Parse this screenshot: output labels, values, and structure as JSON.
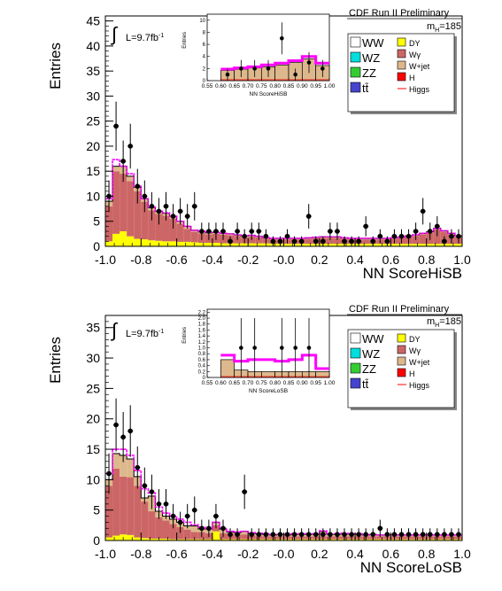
{
  "chart_data": [
    {
      "type": "histogram",
      "title": "CDF Run II Preliminary",
      "mass_label": "m",
      "mass_sub": "H",
      "mass_value": "=185",
      "lumi_prefix": "L=9.7fb",
      "lumi_sup": "-1",
      "xlabel": "NN ScoreHiSB",
      "ylabel": "Entries",
      "xlim": [
        -1.0,
        1.0
      ],
      "ylim": [
        0,
        46
      ],
      "x_ticks": [
        "-1.0",
        "-0.8",
        "-0.6",
        "-0.4",
        "-0.2",
        "-0.0",
        "0.2",
        "0.4",
        "0.6",
        "0.8",
        "1.0"
      ],
      "y_ticks": [
        0,
        5,
        10,
        15,
        20,
        25,
        30,
        35,
        40,
        45
      ],
      "bins": [
        -1.0,
        -0.96,
        -0.92,
        -0.88,
        -0.84,
        -0.8,
        -0.76,
        -0.72,
        -0.68,
        -0.64,
        -0.6,
        -0.56,
        -0.52,
        -0.48,
        -0.44,
        -0.4,
        -0.36,
        -0.32,
        -0.28,
        -0.24,
        -0.2,
        -0.16,
        -0.12,
        -0.08,
        -0.04,
        0.0,
        0.04,
        0.08,
        0.12,
        0.16,
        0.2,
        0.24,
        0.28,
        0.32,
        0.36,
        0.4,
        0.44,
        0.48,
        0.52,
        0.56,
        0.6,
        0.64,
        0.68,
        0.72,
        0.76,
        0.8,
        0.84,
        0.88,
        0.92,
        0.96,
        1.0
      ],
      "stack": [
        {
          "name": "DY",
          "color": "#ffff00",
          "values": [
            1.0,
            2.5,
            3.0,
            2.0,
            1.5,
            1.4,
            1.2,
            1.1,
            1.0,
            1.0,
            0.9,
            0.9,
            0.8,
            0.7,
            0.7,
            0.7,
            0.6,
            0.6,
            0.6,
            0.6,
            0.6,
            0.6,
            0.6,
            0.5,
            0.5,
            0.5,
            0.5,
            0.5,
            0.5,
            0.5,
            0.5,
            0.5,
            0.5,
            0.5,
            0.5,
            0.5,
            0.5,
            0.5,
            0.5,
            0.5,
            0.5,
            0.5,
            0.5,
            0.5,
            0.5,
            0.5,
            0.5,
            0.5,
            0.5,
            0.5
          ]
        },
        {
          "name": "Wγ",
          "color": "#cc6666",
          "values": [
            7.0,
            12.5,
            11.5,
            11.0,
            9.5,
            7.5,
            6.0,
            5.4,
            5.1,
            4.5,
            3.6,
            2.6,
            2.1,
            1.9,
            1.7,
            1.8,
            1.7,
            1.6,
            1.5,
            1.2,
            1.4,
            1.2,
            0.9,
            0.9,
            0.9,
            0.9,
            0.9,
            0.9,
            1.0,
            1.1,
            1.2,
            1.2,
            1.2,
            1.0,
            0.9,
            0.9,
            0.9,
            0.9,
            0.9,
            0.9,
            1.0,
            1.1,
            1.4,
            1.6,
            1.9,
            2.2,
            2.9,
            2.4,
            1.9,
            1.4
          ]
        },
        {
          "name": "W+jet",
          "color": "#ddb88c",
          "values": [
            1.0,
            1.0,
            1.5,
            1.0,
            0.8,
            0.6,
            0.5,
            0.5,
            0.5,
            0.5,
            0.5,
            0.5,
            0.3,
            0.3,
            0.3,
            0.3,
            0.3,
            0.3,
            0.2,
            0.3,
            0.2,
            0.2,
            0.2,
            0.2,
            0.2,
            0.2,
            0.2,
            0.2,
            0.2,
            0.2,
            0.2,
            0.2,
            0.2,
            0.2,
            0.2,
            0.2,
            0.2,
            0.2,
            0.2,
            0.2,
            0.2,
            0.2,
            0.2,
            0.2,
            0.2,
            0.2,
            0.2,
            0.2,
            0.2,
            0.2
          ]
        }
      ],
      "signal_total": [
        9.5,
        17.3,
        16.0,
        14.5,
        12.0,
        9.5,
        7.8,
        7.0,
        6.7,
        6.0,
        5.0,
        4.0,
        3.2,
        3.0,
        2.8,
        2.8,
        2.6,
        2.5,
        2.3,
        2.1,
        2.2,
        2.0,
        1.7,
        1.6,
        1.6,
        1.6,
        1.6,
        1.6,
        1.7,
        1.8,
        1.9,
        1.9,
        1.9,
        1.7,
        1.6,
        1.6,
        1.6,
        1.6,
        1.6,
        1.6,
        1.7,
        1.8,
        2.1,
        2.3,
        2.6,
        2.9,
        3.6,
        3.1,
        2.6,
        2.1
      ],
      "data_points": {
        "x": [
          -0.98,
          -0.94,
          -0.9,
          -0.86,
          -0.82,
          -0.78,
          -0.74,
          -0.7,
          -0.66,
          -0.62,
          -0.58,
          -0.54,
          -0.5,
          -0.46,
          -0.42,
          -0.38,
          -0.34,
          -0.3,
          -0.26,
          -0.22,
          -0.18,
          -0.14,
          -0.1,
          -0.06,
          -0.02,
          0.02,
          0.06,
          0.1,
          0.14,
          0.18,
          0.22,
          0.26,
          0.3,
          0.34,
          0.38,
          0.42,
          0.46,
          0.5,
          0.54,
          0.58,
          0.62,
          0.66,
          0.7,
          0.74,
          0.78,
          0.82,
          0.86,
          0.9,
          0.94,
          0.98
        ],
        "y": [
          10,
          24,
          17,
          20,
          12,
          10,
          8,
          7,
          8,
          6,
          7,
          6,
          8,
          3,
          3,
          3,
          3,
          1,
          3,
          2,
          3,
          3,
          2,
          1,
          1,
          2,
          1,
          1,
          6,
          1,
          1,
          3,
          3,
          1,
          1,
          1,
          4,
          1,
          2,
          1,
          2,
          2,
          2,
          3,
          7,
          3,
          4,
          1,
          2,
          2
        ]
      },
      "legend": [
        {
          "label": "WW",
          "color": "#ffffff"
        },
        {
          "label": "WZ",
          "color": "#00dddd"
        },
        {
          "label": "ZZ",
          "color": "#33cc33"
        },
        {
          "label": "tt̄",
          "color": "#4444cc"
        },
        {
          "label": "DY",
          "color": "#ffff00"
        },
        {
          "label": "Wγ",
          "color": "#cc6666"
        },
        {
          "label": "W+jet",
          "color": "#ddb88c"
        },
        {
          "label": "H",
          "color": "#ff0000"
        },
        {
          "label": "Higgs",
          "color": "#ff0000",
          "line": true
        }
      ],
      "inset": {
        "xlabel": "NN ScoreHiSB",
        "ylabel": "Entries",
        "xlim": [
          0.55,
          1.0
        ],
        "ylim": [
          0,
          11
        ],
        "x_ticks": [
          "0.55",
          "0.60",
          "0.65",
          "0.70",
          "0.75",
          "0.80",
          "0.85",
          "0.90",
          "0.95",
          "1.00"
        ],
        "y_ticks": [
          0,
          2,
          4,
          6,
          8,
          10
        ],
        "bins": [
          0.6,
          0.65,
          0.7,
          0.75,
          0.8,
          0.85,
          0.9,
          0.95,
          1.0
        ],
        "bkg": [
          1.7,
          1.9,
          2.1,
          2.3,
          2.6,
          3.0,
          3.6,
          2.5
        ],
        "sig": [
          1.9,
          2.1,
          2.3,
          2.6,
          2.9,
          3.3,
          4.0,
          2.9
        ],
        "data_x": [
          0.625,
          0.675,
          0.725,
          0.775,
          0.825,
          0.875,
          0.925,
          0.975
        ],
        "data_y": [
          1,
          2,
          2,
          2,
          7,
          1,
          3,
          2
        ]
      }
    },
    {
      "type": "histogram",
      "title": "CDF Run II Preliminary",
      "mass_label": "m",
      "mass_sub": "H",
      "mass_value": "=185",
      "lumi_prefix": "L=9.7fb",
      "lumi_sup": "-1",
      "xlabel": "NN ScoreLoSB",
      "ylabel": "Entries",
      "xlim": [
        -1.0,
        1.0
      ],
      "ylim": [
        0,
        37
      ],
      "x_ticks": [
        "-1.0",
        "-0.8",
        "-0.6",
        "-0.4",
        "-0.2",
        "-0.0",
        "0.2",
        "0.4",
        "0.6",
        "0.8",
        "1.0"
      ],
      "y_ticks": [
        0,
        5,
        10,
        15,
        20,
        25,
        30,
        35
      ],
      "bins": [
        -1.0,
        -0.96,
        -0.92,
        -0.88,
        -0.84,
        -0.8,
        -0.76,
        -0.72,
        -0.68,
        -0.64,
        -0.6,
        -0.56,
        -0.52,
        -0.48,
        -0.44,
        -0.4,
        -0.36,
        -0.32,
        -0.28,
        -0.24,
        -0.2,
        -0.16,
        -0.12,
        -0.08,
        -0.04,
        0.0,
        0.04,
        0.08,
        0.12,
        0.16,
        0.2,
        0.24,
        0.28,
        0.32,
        0.36,
        0.4,
        0.44,
        0.48,
        0.52,
        0.56,
        0.6,
        0.64,
        0.68,
        0.72,
        0.76,
        0.8,
        0.84,
        0.88,
        0.92,
        0.96,
        1.0
      ],
      "stack": [
        {
          "name": "DY",
          "color": "#ffff00",
          "values": [
            0.5,
            0.8,
            1.0,
            0.9,
            0.5,
            0.4,
            0.3,
            0.3,
            0.3,
            0.2,
            0.2,
            0.2,
            0.2,
            0.2,
            0.2,
            1.5,
            0.2,
            0.2,
            0.2,
            0.2,
            0.2,
            0.2,
            0.2,
            0.2,
            0.2,
            0.2,
            0.2,
            0.2,
            0.2,
            0.2,
            0.2,
            0.2,
            0.2,
            0.2,
            0.2,
            0.2,
            0.2,
            0.2,
            0.2,
            0.2,
            0.2,
            0.2,
            0.2,
            0.2,
            0.2,
            0.2,
            0.2,
            0.2,
            0.2,
            0.2
          ]
        },
        {
          "name": "Wγ",
          "color": "#cc6666",
          "values": [
            8.5,
            11.0,
            9.5,
            9.5,
            8.5,
            6.0,
            4.5,
            3.5,
            3.0,
            2.5,
            2.0,
            1.6,
            1.2,
            1.2,
            1.0,
            1.0,
            1.0,
            0.9,
            0.8,
            0.8,
            0.7,
            0.6,
            0.5,
            0.5,
            0.5,
            0.5,
            0.5,
            0.5,
            0.5,
            0.5,
            0.5,
            0.5,
            0.5,
            0.5,
            0.5,
            0.5,
            0.5,
            0.5,
            0.5,
            0.5,
            0.5,
            0.5,
            0.5,
            0.5,
            0.5,
            0.5,
            0.5,
            0.5,
            0.5,
            0.5
          ]
        },
        {
          "name": "W+jet",
          "color": "#ddb88c",
          "values": [
            1.0,
            2.5,
            3.5,
            3.0,
            1.5,
            0.6,
            2.5,
            1.0,
            0.7,
            0.8,
            0.8,
            0.6,
            1.0,
            0.5,
            0.7,
            0.5,
            0.7,
            0.3,
            0.3,
            0.5,
            0.3,
            0.3,
            0.3,
            0.2,
            0.3,
            0.2,
            0.3,
            0.3,
            0.3,
            0.3,
            0.8,
            0.3,
            0.3,
            0.4,
            0.3,
            0.3,
            0.2,
            0.3,
            0.2,
            0.2,
            0.2,
            0.2,
            0.2,
            0.2,
            0.2,
            0.2,
            0.2,
            0.2,
            0.2,
            0.2
          ]
        }
      ],
      "signal_total": [
        11.0,
        15.0,
        15.0,
        14.0,
        11.5,
        8.5,
        7.8,
        5.5,
        4.5,
        4.0,
        3.5,
        3.0,
        2.6,
        2.2,
        2.0,
        3.0,
        2.0,
        1.5,
        1.4,
        1.5,
        1.3,
        1.2,
        1.1,
        1.0,
        1.0,
        1.0,
        1.1,
        1.1,
        1.1,
        1.1,
        1.6,
        1.1,
        1.1,
        1.2,
        1.1,
        1.1,
        0.9,
        1.0,
        0.9,
        0.9,
        0.9,
        0.9,
        0.9,
        0.9,
        0.9,
        0.9,
        0.9,
        0.9,
        0.9,
        0.9
      ],
      "data_points": {
        "x": [
          -0.98,
          -0.94,
          -0.9,
          -0.86,
          -0.82,
          -0.78,
          -0.74,
          -0.7,
          -0.66,
          -0.62,
          -0.58,
          -0.54,
          -0.5,
          -0.46,
          -0.42,
          -0.38,
          -0.34,
          -0.3,
          -0.26,
          -0.22,
          -0.18,
          -0.14,
          -0.1,
          -0.06,
          -0.02,
          0.02,
          0.06,
          0.1,
          0.14,
          0.18,
          0.22,
          0.26,
          0.3,
          0.34,
          0.38,
          0.42,
          0.46,
          0.5,
          0.54,
          0.58,
          0.62,
          0.66,
          0.7,
          0.74,
          0.78,
          0.82,
          0.86,
          0.9,
          0.94,
          0.98
        ],
        "y": [
          11,
          19,
          17,
          18,
          12,
          9,
          8,
          6,
          6,
          4,
          3,
          4,
          5,
          2,
          2,
          4,
          2,
          1,
          1,
          8,
          1,
          1,
          1,
          1,
          1,
          1,
          1,
          1,
          1,
          1,
          1,
          1,
          1,
          1,
          1,
          1,
          1,
          1,
          2,
          1,
          1,
          1,
          1,
          1,
          1,
          1,
          1,
          1,
          1,
          1
        ]
      },
      "legend": [
        {
          "label": "WW",
          "color": "#ffffff"
        },
        {
          "label": "WZ",
          "color": "#00dddd"
        },
        {
          "label": "ZZ",
          "color": "#33cc33"
        },
        {
          "label": "tt̄",
          "color": "#4444cc"
        },
        {
          "label": "DY",
          "color": "#ffff00"
        },
        {
          "label": "Wγ",
          "color": "#cc6666"
        },
        {
          "label": "W+jet",
          "color": "#ddb88c"
        },
        {
          "label": "H",
          "color": "#ff0000"
        },
        {
          "label": "Higgs",
          "color": "#ff0000",
          "line": true
        }
      ],
      "inset": {
        "xlabel": "NN ScoreLoSB",
        "ylabel": "Entries",
        "xlim": [
          0.55,
          1.0
        ],
        "ylim": [
          0,
          2.3
        ],
        "x_ticks": [
          "0.55",
          "0.60",
          "0.65",
          "0.70",
          "0.75",
          "0.80",
          "0.85",
          "0.90",
          "0.95",
          "1.00"
        ],
        "y_ticks": [
          "0",
          "0.2",
          "0.4",
          "0.6",
          "0.8",
          "1.0",
          "1.2",
          "1.4",
          "1.6",
          "1.8",
          "2.0",
          "2.2"
        ],
        "bins": [
          0.6,
          0.65,
          0.7,
          0.75,
          0.8,
          0.85,
          0.9,
          0.95,
          1.0
        ],
        "bkg": [
          0.6,
          0.25,
          0.2,
          0.2,
          0.2,
          0.2,
          0.2,
          0.2
        ],
        "sig": [
          0.75,
          0.55,
          0.6,
          0.6,
          0.55,
          0.6,
          0.75,
          0.3
        ],
        "data_x": [
          0.625,
          0.675,
          0.725,
          0.775,
          0.825,
          0.875,
          0.925,
          0.975
        ],
        "data_y": [
          0,
          1,
          1,
          0,
          1,
          1,
          1,
          0
        ]
      }
    }
  ]
}
